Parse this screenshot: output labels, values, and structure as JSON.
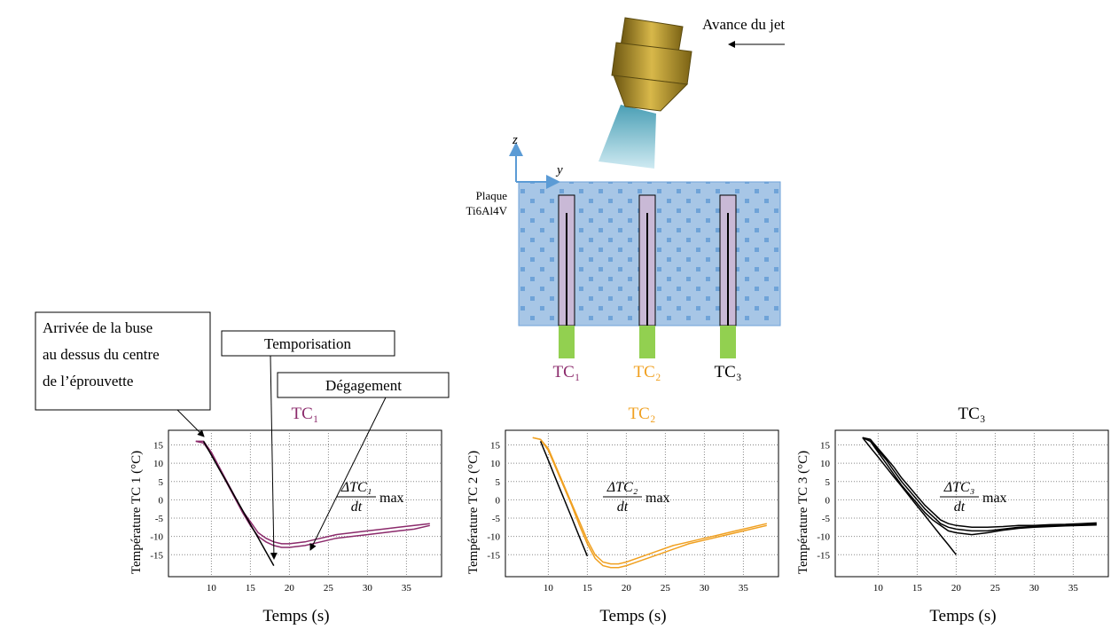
{
  "diagram": {
    "jet_label": "Avance du jet",
    "plate_label": [
      "Plaque",
      "Ti6Al4V"
    ],
    "axis_z": "z",
    "axis_y": "y",
    "thermocouples": [
      {
        "label": "TC₁",
        "color": "#8b2a6b"
      },
      {
        "label": "TC₂",
        "color": "#f0a020"
      },
      {
        "label": "TC₃",
        "color": "#000000"
      }
    ]
  },
  "chart_data": [
    {
      "type": "line",
      "title": "TC₁",
      "title_color": "#8b2a6b",
      "x_label": "Temps (s)",
      "y_label": "Température TC 1 (°C)",
      "xlim": [
        4.5,
        39.5
      ],
      "ylim": [
        -21,
        19
      ],
      "xticks": [
        10,
        15,
        20,
        25,
        30,
        35
      ],
      "yticks": [
        -15,
        -10,
        -5,
        0,
        5,
        10,
        15
      ],
      "grid": true,
      "annotation": {
        "numerator": "ΔTC₁",
        "denominator": "dt",
        "suffix": "max"
      },
      "annotations": {
        "arrival": [
          "Arrivée de la buse",
          "au dessus du centre",
          "de l’éprouvette"
        ],
        "delay": "Temporisation",
        "release": "Dégagement"
      },
      "x": [
        8,
        9,
        10,
        11,
        12,
        13,
        14,
        15,
        16,
        17,
        18,
        19,
        20,
        22,
        24,
        26,
        28,
        30,
        32,
        34,
        36,
        38
      ],
      "series": [
        {
          "color": "#8b2a6b",
          "values": [
            16,
            16,
            13,
            9,
            5,
            1,
            -3,
            -6,
            -9,
            -10.5,
            -11.5,
            -12,
            -12,
            -11.5,
            -10.5,
            -9.5,
            -9,
            -8.5,
            -8,
            -7.5,
            -7,
            -6.5
          ]
        },
        {
          "color": "#8b2a6b",
          "values": [
            16,
            15.5,
            12.5,
            8.5,
            4.5,
            0.5,
            -3.5,
            -7,
            -10,
            -11.5,
            -12.5,
            -13,
            -13,
            -12.5,
            -11.5,
            -10.5,
            -10,
            -9.5,
            -9,
            -8.5,
            -8,
            -7
          ]
        },
        {
          "color": "#000000",
          "values": [
            null,
            16,
            12.2,
            8.4,
            4.7,
            0.9,
            -2.9,
            -6.7,
            -10.4,
            -14.2,
            -18,
            null,
            null,
            null,
            null,
            null,
            null,
            null,
            null,
            null,
            null,
            null
          ]
        }
      ]
    },
    {
      "type": "line",
      "title": "TC₂",
      "title_color": "#f0a020",
      "x_label": "Temps (s)",
      "y_label": "Température TC 2 (°C)",
      "xlim": [
        4.5,
        39.5
      ],
      "ylim": [
        -21,
        19
      ],
      "xticks": [
        10,
        15,
        20,
        25,
        30,
        35
      ],
      "yticks": [
        -15,
        -10,
        -5,
        0,
        5,
        10,
        15
      ],
      "grid": true,
      "annotation": {
        "numerator": "ΔTC₂",
        "denominator": "dt",
        "suffix": "max"
      },
      "x": [
        8,
        9,
        10,
        11,
        12,
        13,
        14,
        15,
        16,
        17,
        18,
        19,
        20,
        22,
        24,
        26,
        28,
        30,
        32,
        34,
        36,
        38
      ],
      "series": [
        {
          "color": "#f0a020",
          "values": [
            17,
            16.5,
            14,
            9,
            4,
            -1,
            -6,
            -11,
            -15,
            -17,
            -17.5,
            -17.5,
            -17,
            -15.5,
            -14,
            -12.5,
            -11.5,
            -10.5,
            -9.5,
            -8.5,
            -7.5,
            -6.5
          ]
        },
        {
          "color": "#f0a020",
          "values": [
            17,
            16.5,
            13.5,
            8.5,
            3.5,
            -1.5,
            -7,
            -12,
            -16,
            -18,
            -18.5,
            -18.5,
            -18,
            -16.5,
            -15,
            -13.5,
            -12,
            -11,
            -10,
            -9,
            -8,
            -7
          ]
        },
        {
          "color": "#000000",
          "values": [
            null,
            16,
            10.8,
            5.5,
            0.3,
            -4.9,
            -10.2,
            -15.4,
            null,
            null,
            null,
            null,
            null,
            null,
            null,
            null,
            null,
            null,
            null,
            null,
            null,
            null
          ]
        }
      ]
    },
    {
      "type": "line",
      "title": "TC₃",
      "title_color": "#000000",
      "x_label": "Temps (s)",
      "y_label": "Température TC 3 (°C)",
      "xlim": [
        4.5,
        39.5
      ],
      "ylim": [
        -21,
        19
      ],
      "xticks": [
        10,
        15,
        20,
        25,
        30,
        35
      ],
      "yticks": [
        -15,
        -10,
        -5,
        0,
        5,
        10,
        15
      ],
      "grid": true,
      "annotation": {
        "numerator": "ΔTC₃",
        "denominator": "dt",
        "suffix": "max"
      },
      "x": [
        8,
        9,
        10,
        11,
        12,
        13,
        14,
        15,
        16,
        17,
        18,
        19,
        20,
        22,
        24,
        26,
        28,
        30,
        32,
        34,
        36,
        38
      ],
      "series": [
        {
          "color": "#000000",
          "values": [
            17,
            16.5,
            14,
            11.5,
            9,
            6,
            3.5,
            1,
            -1.5,
            -3.5,
            -5.5,
            -6.5,
            -7,
            -7.5,
            -7.5,
            -7.3,
            -7,
            -7,
            -6.8,
            -6.7,
            -6.5,
            -6.3
          ]
        },
        {
          "color": "#000000",
          "values": [
            17,
            16.5,
            13.5,
            11,
            8,
            5,
            2.5,
            0,
            -2.5,
            -4.5,
            -6.5,
            -7.5,
            -8,
            -8.5,
            -8.5,
            -8,
            -7.5,
            -7.3,
            -7,
            -7,
            -6.8,
            -6.6
          ]
        },
        {
          "color": "#000000",
          "values": [
            17,
            16,
            13,
            10,
            7,
            4,
            1.5,
            -1,
            -3.5,
            -5.5,
            -7,
            -8.5,
            -9,
            -9.5,
            -9,
            -8.3,
            -7.8,
            -7.5,
            -7.3,
            -7.1,
            -7,
            -6.9
          ]
        },
        {
          "color": "#000000",
          "values": [
            17,
            14.3,
            11.7,
            9,
            6.3,
            3.7,
            1,
            -1.7,
            -4.3,
            -7,
            -9.7,
            -12.3,
            -15,
            null,
            null,
            null,
            null,
            null,
            null,
            null,
            null,
            null
          ]
        }
      ]
    }
  ]
}
